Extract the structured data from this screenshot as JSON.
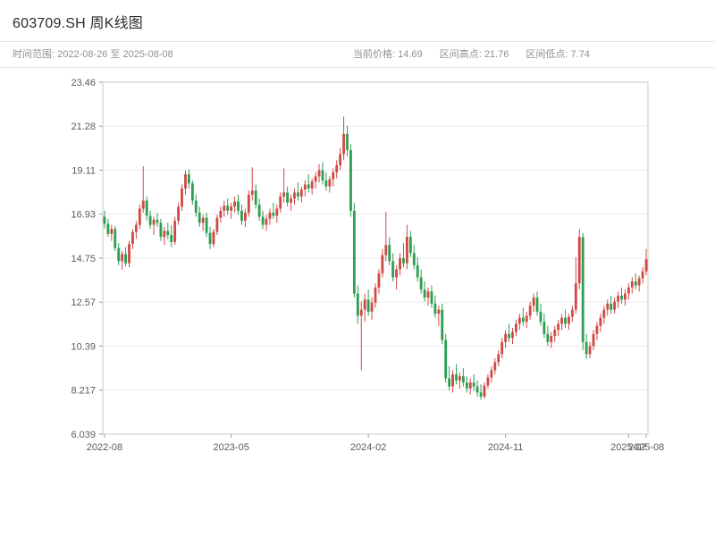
{
  "header": {
    "title": "603709.SH 周K线图"
  },
  "info": {
    "time_range_label": "时间范围: 2022-08-26 至 2025-08-08",
    "current_price_label": "当前价格: 14.69",
    "range_high_label": "区间高点: 21.76",
    "range_low_label": "区间低点: 7.74"
  },
  "chart_data": {
    "type": "candlestick",
    "title": "603709.SH 周K线图",
    "symbol": "603709.SH",
    "interval": "weekly",
    "time_range": {
      "start": "2022-08-26",
      "end": "2025-08-08"
    },
    "current_price": 14.69,
    "range_high": 21.76,
    "range_low": 7.74,
    "ylim": [
      6.039,
      23.46
    ],
    "grid": true,
    "up_color": "#d04a45",
    "down_color": "#2e9e52",
    "y_ticks": [
      {
        "label": "23.46",
        "value": 23.46
      },
      {
        "label": "21.28",
        "value": 21.283
      },
      {
        "label": "19.11",
        "value": 19.105
      },
      {
        "label": "16.93",
        "value": 16.928
      },
      {
        "label": "14.75",
        "value": 14.75
      },
      {
        "label": "12.57",
        "value": 12.572
      },
      {
        "label": "10.39",
        "value": 10.394
      },
      {
        "label": "8.217",
        "value": 8.217
      },
      {
        "label": "6.039",
        "value": 6.039
      }
    ],
    "x_ticks": [
      {
        "label": "2022-08",
        "index": 0
      },
      {
        "label": "2023-05",
        "index": 36
      },
      {
        "label": "2024-02",
        "index": 75
      },
      {
        "label": "2024-11",
        "index": 114
      },
      {
        "label": "2025-07",
        "index": 149
      },
      {
        "label": "2025-08",
        "index": 154
      }
    ],
    "ohlc": [
      [
        16.8,
        17.1,
        16.2,
        16.45
      ],
      [
        16.45,
        16.7,
        15.8,
        15.95
      ],
      [
        15.95,
        16.4,
        15.6,
        16.2
      ],
      [
        16.2,
        16.35,
        15.1,
        15.25
      ],
      [
        15.25,
        15.5,
        14.4,
        14.6
      ],
      [
        14.6,
        15.1,
        14.2,
        14.95
      ],
      [
        14.95,
        15.3,
        14.35,
        14.5
      ],
      [
        14.5,
        15.6,
        14.3,
        15.45
      ],
      [
        15.45,
        16.2,
        15.2,
        16.05
      ],
      [
        16.05,
        16.6,
        15.7,
        16.4
      ],
      [
        16.4,
        17.4,
        16.2,
        17.2
      ],
      [
        17.2,
        19.3,
        17.0,
        17.6
      ],
      [
        17.6,
        17.8,
        16.6,
        16.85
      ],
      [
        16.85,
        17.1,
        16.2,
        16.4
      ],
      [
        16.4,
        16.8,
        15.9,
        16.65
      ],
      [
        16.65,
        17.0,
        16.3,
        16.5
      ],
      [
        16.5,
        16.7,
        15.6,
        15.8
      ],
      [
        15.8,
        16.3,
        15.4,
        16.1
      ],
      [
        16.1,
        16.5,
        15.7,
        15.9
      ],
      [
        15.9,
        16.4,
        15.3,
        15.55
      ],
      [
        15.55,
        16.8,
        15.4,
        16.6
      ],
      [
        16.6,
        17.5,
        16.4,
        17.3
      ],
      [
        17.3,
        18.4,
        17.1,
        18.2
      ],
      [
        18.2,
        19.1,
        17.9,
        18.9
      ],
      [
        18.9,
        19.15,
        18.2,
        18.45
      ],
      [
        18.45,
        18.6,
        17.4,
        17.6
      ],
      [
        17.6,
        17.9,
        16.8,
        17.0
      ],
      [
        17.0,
        17.3,
        16.3,
        16.5
      ],
      [
        16.5,
        16.9,
        16.1,
        16.75
      ],
      [
        16.75,
        17.0,
        15.8,
        16.0
      ],
      [
        16.0,
        16.3,
        15.2,
        15.45
      ],
      [
        15.45,
        16.2,
        15.3,
        16.05
      ],
      [
        16.05,
        16.9,
        15.9,
        16.75
      ],
      [
        16.75,
        17.3,
        16.5,
        17.1
      ],
      [
        17.1,
        17.6,
        16.8,
        17.35
      ],
      [
        17.35,
        17.7,
        16.9,
        17.1
      ],
      [
        17.1,
        17.5,
        16.7,
        17.3
      ],
      [
        17.3,
        17.8,
        17.0,
        17.55
      ],
      [
        17.55,
        17.9,
        16.9,
        17.1
      ],
      [
        17.1,
        17.4,
        16.4,
        16.6
      ],
      [
        16.6,
        17.2,
        16.3,
        17.0
      ],
      [
        17.0,
        18.1,
        16.8,
        17.9
      ],
      [
        17.9,
        19.25,
        17.6,
        18.1
      ],
      [
        18.1,
        18.4,
        17.2,
        17.4
      ],
      [
        17.4,
        17.7,
        16.6,
        16.8
      ],
      [
        16.8,
        17.1,
        16.2,
        16.4
      ],
      [
        16.4,
        16.9,
        16.1,
        16.7
      ],
      [
        16.7,
        17.2,
        16.4,
        17.0
      ],
      [
        17.0,
        17.5,
        16.7,
        16.85
      ],
      [
        16.85,
        17.4,
        16.5,
        17.2
      ],
      [
        17.2,
        18.0,
        17.0,
        17.8
      ],
      [
        17.8,
        19.2,
        17.5,
        18.0
      ],
      [
        18.0,
        18.3,
        17.3,
        17.5
      ],
      [
        17.5,
        17.9,
        17.1,
        17.7
      ],
      [
        17.7,
        18.2,
        17.4,
        18.0
      ],
      [
        18.0,
        18.5,
        17.6,
        17.8
      ],
      [
        17.8,
        18.3,
        17.5,
        18.15
      ],
      [
        18.15,
        18.6,
        17.8,
        18.4
      ],
      [
        18.4,
        18.9,
        18.0,
        18.2
      ],
      [
        18.2,
        18.7,
        17.9,
        18.55
      ],
      [
        18.55,
        19.0,
        18.2,
        18.8
      ],
      [
        18.8,
        19.4,
        18.5,
        19.1
      ],
      [
        19.1,
        19.5,
        18.4,
        18.6
      ],
      [
        18.6,
        19.0,
        18.1,
        18.3
      ],
      [
        18.3,
        18.8,
        18.0,
        18.65
      ],
      [
        18.65,
        19.2,
        18.3,
        19.0
      ],
      [
        19.0,
        19.6,
        18.7,
        19.35
      ],
      [
        19.35,
        20.2,
        19.1,
        19.9
      ],
      [
        19.9,
        21.76,
        19.6,
        20.9
      ],
      [
        20.9,
        21.3,
        19.8,
        20.1
      ],
      [
        20.1,
        20.4,
        16.8,
        17.1
      ],
      [
        17.1,
        17.5,
        12.8,
        13.0
      ],
      [
        13.0,
        13.4,
        11.5,
        11.9
      ],
      [
        11.9,
        12.6,
        9.2,
        12.2
      ],
      [
        12.2,
        13.0,
        11.6,
        12.7
      ],
      [
        12.7,
        13.2,
        11.9,
        12.1
      ],
      [
        12.1,
        12.8,
        11.7,
        12.55
      ],
      [
        12.55,
        13.5,
        12.3,
        13.3
      ],
      [
        13.3,
        14.2,
        13.0,
        14.0
      ],
      [
        14.0,
        15.2,
        13.8,
        14.9
      ],
      [
        14.9,
        17.05,
        14.6,
        15.4
      ],
      [
        15.4,
        15.8,
        14.4,
        14.6
      ],
      [
        14.6,
        15.0,
        13.6,
        13.8
      ],
      [
        13.8,
        14.4,
        13.2,
        14.2
      ],
      [
        14.2,
        15.0,
        13.9,
        14.75
      ],
      [
        14.75,
        15.5,
        14.3,
        14.5
      ],
      [
        14.5,
        16.4,
        14.2,
        15.8
      ],
      [
        15.8,
        16.1,
        14.8,
        15.0
      ],
      [
        15.0,
        15.4,
        14.2,
        14.4
      ],
      [
        14.4,
        14.8,
        13.6,
        13.8
      ],
      [
        13.8,
        14.2,
        13.0,
        13.2
      ],
      [
        13.2,
        13.6,
        12.6,
        12.8
      ],
      [
        12.8,
        13.3,
        12.4,
        13.1
      ],
      [
        13.1,
        13.4,
        12.3,
        12.5
      ],
      [
        12.5,
        12.9,
        11.8,
        12.0
      ],
      [
        12.0,
        12.4,
        11.4,
        12.2
      ],
      [
        12.2,
        12.5,
        10.5,
        10.7
      ],
      [
        10.7,
        11.0,
        8.6,
        8.8
      ],
      [
        8.8,
        9.4,
        8.2,
        8.4
      ],
      [
        8.4,
        9.2,
        8.1,
        9.0
      ],
      [
        9.0,
        9.5,
        8.5,
        8.7
      ],
      [
        8.7,
        9.1,
        8.3,
        8.9
      ],
      [
        8.9,
        9.3,
        8.4,
        8.6
      ],
      [
        8.6,
        8.9,
        8.1,
        8.3
      ],
      [
        8.3,
        8.8,
        8.0,
        8.6
      ],
      [
        8.6,
        9.0,
        8.2,
        8.4
      ],
      [
        8.4,
        8.7,
        7.9,
        8.1
      ],
      [
        8.1,
        8.5,
        7.74,
        7.9
      ],
      [
        7.9,
        8.6,
        7.8,
        8.45
      ],
      [
        8.45,
        9.0,
        8.3,
        8.85
      ],
      [
        8.85,
        9.4,
        8.6,
        9.2
      ],
      [
        9.2,
        9.8,
        9.0,
        9.6
      ],
      [
        9.6,
        10.2,
        9.4,
        10.0
      ],
      [
        10.0,
        10.8,
        9.8,
        10.6
      ],
      [
        10.6,
        11.2,
        10.3,
        11.0
      ],
      [
        11.0,
        11.5,
        10.6,
        10.8
      ],
      [
        10.8,
        11.3,
        10.5,
        11.1
      ],
      [
        11.1,
        11.7,
        10.9,
        11.5
      ],
      [
        11.5,
        12.0,
        11.2,
        11.8
      ],
      [
        11.8,
        12.3,
        11.4,
        11.6
      ],
      [
        11.6,
        12.1,
        11.3,
        11.9
      ],
      [
        11.9,
        12.6,
        11.7,
        12.4
      ],
      [
        12.4,
        13.0,
        12.1,
        12.8
      ],
      [
        12.8,
        13.1,
        11.9,
        12.1
      ],
      [
        12.1,
        12.5,
        11.4,
        11.6
      ],
      [
        11.6,
        12.0,
        10.8,
        11.0
      ],
      [
        11.0,
        11.4,
        10.4,
        10.6
      ],
      [
        10.6,
        11.1,
        10.3,
        10.9
      ],
      [
        10.9,
        11.4,
        10.6,
        11.2
      ],
      [
        11.2,
        11.7,
        10.9,
        11.5
      ],
      [
        11.5,
        12.0,
        11.2,
        11.8
      ],
      [
        11.8,
        12.2,
        11.3,
        11.5
      ],
      [
        11.5,
        12.0,
        11.2,
        11.85
      ],
      [
        11.85,
        12.4,
        11.6,
        12.2
      ],
      [
        12.2,
        14.8,
        12.0,
        13.5
      ],
      [
        13.5,
        16.2,
        13.2,
        15.8
      ],
      [
        15.8,
        16.0,
        10.2,
        10.6
      ],
      [
        10.6,
        11.0,
        9.76,
        10.0
      ],
      [
        10.0,
        10.6,
        9.8,
        10.4
      ],
      [
        10.4,
        11.2,
        10.2,
        11.0
      ],
      [
        11.0,
        11.6,
        10.7,
        11.4
      ],
      [
        11.4,
        12.0,
        11.1,
        11.8
      ],
      [
        11.8,
        12.4,
        11.5,
        12.2
      ],
      [
        12.2,
        12.7,
        11.9,
        12.5
      ],
      [
        12.5,
        12.9,
        12.0,
        12.2
      ],
      [
        12.2,
        12.8,
        12.0,
        12.6
      ],
      [
        12.6,
        13.1,
        12.3,
        12.9
      ],
      [
        12.9,
        13.3,
        12.5,
        12.7
      ],
      [
        12.7,
        13.2,
        12.4,
        13.0
      ],
      [
        13.0,
        13.5,
        12.7,
        13.3
      ],
      [
        13.3,
        13.8,
        13.0,
        13.6
      ],
      [
        13.6,
        14.0,
        13.2,
        13.4
      ],
      [
        13.4,
        13.9,
        13.1,
        13.75
      ],
      [
        13.75,
        14.3,
        13.5,
        14.1
      ],
      [
        14.1,
        15.2,
        13.9,
        14.69
      ]
    ]
  }
}
